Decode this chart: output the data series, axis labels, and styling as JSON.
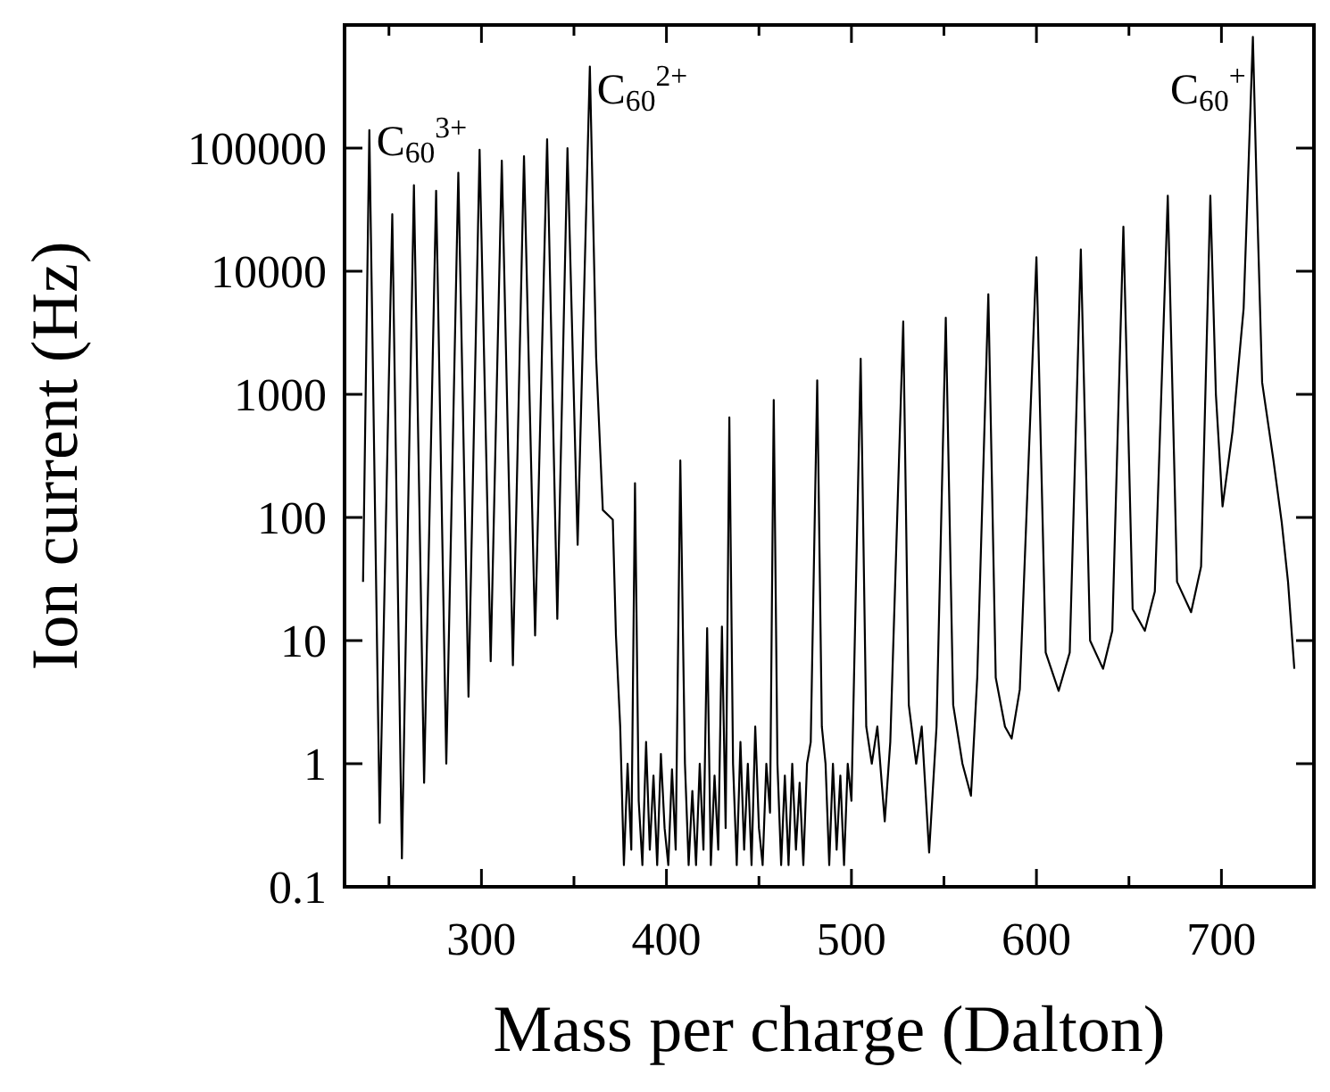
{
  "chart_data": {
    "type": "line",
    "xlabel": "Mass per charge (Dalton)",
    "ylabel": "Ion current (Hz)",
    "log": "y",
    "xlim": [
      226,
      750
    ],
    "ylim": [
      0.1,
      1000000
    ],
    "xticks": [
      {
        "value": 250,
        "label": null
      },
      300,
      {
        "value": 350,
        "label": null
      },
      400,
      {
        "value": 450,
        "label": null
      },
      500,
      {
        "value": 550,
        "label": null
      },
      600,
      {
        "value": 650,
        "label": null
      },
      700
    ],
    "yticks": [
      0.1,
      1,
      10,
      100,
      1000,
      10000,
      100000,
      {
        "value": 1000000,
        "label": null
      }
    ],
    "annotations": [
      {
        "text": "C$_{60}$$^{3+}$",
        "x": 239.4,
        "y": 140000
      },
      {
        "text": "C$_{60}$$^{2+}$",
        "x": 358.6,
        "y": 460000
      },
      {
        "text": "C$_{60}$$^{+}$",
        "x": 717,
        "y": 800000
      }
    ],
    "series": [
      {
        "color": "#000000",
        "x": [
          236,
          239.4,
          245,
          251.8,
          257,
          263.5,
          269,
          275.5,
          281,
          287.5,
          293,
          299,
          305,
          311,
          317,
          323,
          329,
          335.5,
          341,
          346.5,
          352,
          358.6,
          362,
          365.6,
          371,
          372.7,
          375,
          377,
          379,
          381,
          383,
          385,
          387,
          389,
          391,
          393,
          395,
          397,
          399,
          401,
          403,
          405,
          407.5,
          410,
          412,
          414,
          416,
          418,
          420,
          422,
          424,
          426,
          428,
          430,
          432,
          434,
          436,
          438,
          440,
          442,
          444,
          446,
          448,
          450,
          452,
          454,
          456,
          458,
          460,
          462,
          464,
          466,
          468,
          470,
          472,
          474,
          476,
          478,
          481.5,
          484,
          486,
          488,
          490,
          492,
          494,
          496,
          498,
          500,
          505,
          508,
          511,
          514,
          518,
          521,
          528,
          531,
          535,
          538,
          542,
          546,
          551,
          555,
          560,
          564.6,
          568,
          574,
          578,
          583,
          586.6,
          591,
          600,
          605,
          612,
          618,
          624,
          629,
          636,
          641,
          647,
          652,
          658.6,
          664,
          671,
          676,
          683.6,
          689,
          694,
          697,
          700.6,
          706,
          712,
          717,
          719,
          722,
          728,
          732.6,
          736,
          739.4
        ],
        "values": [
          30,
          140000,
          0.33,
          29000,
          0.17,
          50000,
          0.7,
          45000,
          1,
          63000,
          3.5,
          97000,
          6.8,
          79000,
          6.3,
          86000,
          11,
          118000,
          15,
          100000,
          60,
          460000,
          2000,
          115,
          96,
          11,
          2,
          0.15,
          1,
          0.2,
          190,
          0.5,
          0.15,
          1.5,
          0.2,
          0.8,
          0.15,
          1.2,
          0.3,
          0.15,
          0.9,
          0.2,
          290,
          1,
          0.15,
          0.6,
          0.15,
          1,
          0.2,
          12.6,
          0.15,
          0.8,
          0.2,
          13,
          0.3,
          650,
          1,
          0.15,
          1.5,
          0.2,
          1,
          0.15,
          2,
          0.3,
          0.15,
          1,
          0.4,
          900,
          1,
          0.15,
          0.8,
          0.15,
          1,
          0.2,
          0.7,
          0.15,
          1,
          1.5,
          1300,
          2,
          1,
          0.15,
          1,
          0.2,
          0.8,
          0.15,
          1,
          0.5,
          1950,
          2,
          1,
          2,
          0.34,
          1.5,
          3900,
          3,
          1,
          2,
          0.19,
          2,
          4200,
          3,
          1,
          0.55,
          5,
          6500,
          5,
          2,
          1.6,
          4,
          13000,
          8,
          3.9,
          8,
          15000,
          10,
          5.9,
          12,
          23000,
          18,
          12,
          25,
          41000,
          30,
          17,
          40,
          41000,
          1000,
          123,
          500,
          5000,
          800000,
          50000,
          1250,
          300,
          91,
          30,
          5.9
        ]
      }
    ]
  }
}
